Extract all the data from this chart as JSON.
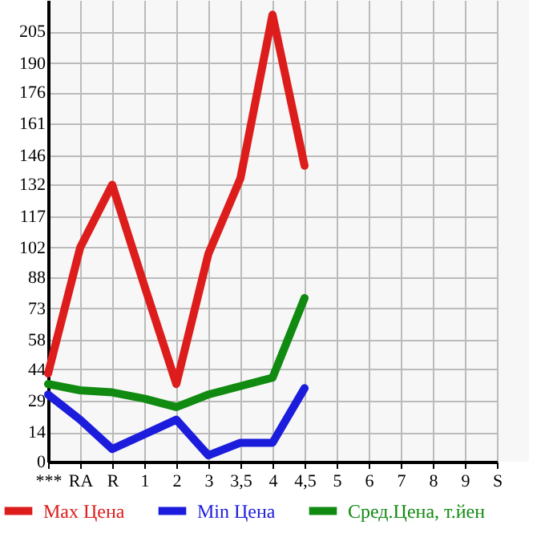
{
  "chart_data": {
    "type": "line",
    "categories": [
      "***",
      "RA",
      "R",
      "1",
      "2",
      "3",
      "3,5",
      "4",
      "4,5",
      "5",
      "6",
      "7",
      "8",
      "9",
      "S"
    ],
    "series": [
      {
        "name": "Max Цена",
        "color": "#dd1c1c",
        "values": [
          42,
          102,
          132,
          84,
          37,
          99,
          135,
          213,
          141,
          null,
          null,
          null,
          null,
          null,
          null
        ]
      },
      {
        "name": "Min Цена",
        "color": "#1c1cdd",
        "values": [
          32,
          20,
          6,
          13,
          20,
          3,
          9,
          9,
          35,
          null,
          null,
          null,
          null,
          null,
          null
        ]
      },
      {
        "name": "Сред.Цена, т.йен",
        "color": "#118a11",
        "values": [
          37,
          34,
          33,
          30,
          26,
          32,
          36,
          40,
          78,
          null,
          null,
          null,
          null,
          null,
          null
        ]
      }
    ],
    "ylim": [
      0,
      220
    ],
    "yticks": [
      0,
      14,
      29,
      44,
      58,
      73,
      88,
      102,
      117,
      132,
      146,
      161,
      176,
      190,
      205
    ],
    "grid": true,
    "legend": "bottom",
    "marker": "none",
    "line_style": "solid"
  }
}
